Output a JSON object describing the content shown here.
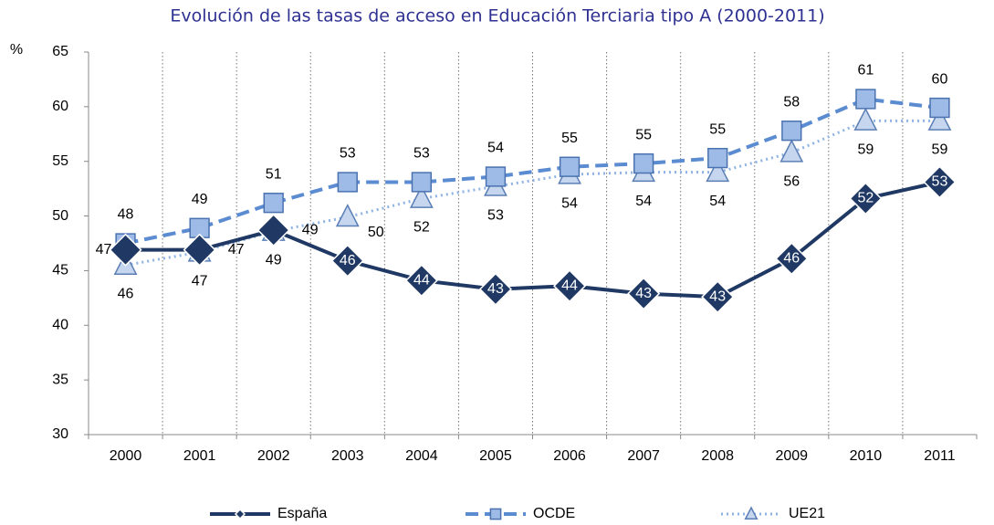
{
  "chart_data": {
    "type": "line",
    "title": "Evolución de las tasas de acceso en Educación Terciaria tipo A (2000-2011)",
    "y_label": "%",
    "categories": [
      "2000",
      "2001",
      "2002",
      "2003",
      "2004",
      "2005",
      "2006",
      "2007",
      "2008",
      "2009",
      "2010",
      "2011"
    ],
    "ylim": [
      30,
      65
    ],
    "yticks": [
      30,
      35,
      40,
      45,
      50,
      55,
      60,
      65
    ],
    "series": [
      {
        "name": "España",
        "color": "#1f3864",
        "marker": "diamond",
        "dash": "solid",
        "values": [
          46.9,
          46.9,
          48.7,
          45.9,
          44.1,
          43.3,
          43.6,
          42.9,
          42.6,
          46.1,
          51.6,
          53.1
        ],
        "value_labels": [
          "47",
          "47",
          "49",
          "46",
          "44",
          "43",
          "44",
          "43",
          "43",
          "46",
          "52",
          "53"
        ]
      },
      {
        "name": "OCDE",
        "color": "#5b8bd0",
        "marker": "square",
        "dash": "dashed",
        "values": [
          47.5,
          48.9,
          51.2,
          53.1,
          53.1,
          53.6,
          54.5,
          54.8,
          55.3,
          57.8,
          60.7,
          59.9
        ],
        "value_labels": [
          "48",
          "49",
          "51",
          "53",
          "53",
          "54",
          "55",
          "55",
          "55",
          "58",
          "61",
          "60"
        ]
      },
      {
        "name": "UE21",
        "color": "#8fb4e3",
        "marker": "triangle",
        "dash": "dotted",
        "values": [
          45.5,
          46.7,
          48.6,
          49.9,
          51.6,
          52.7,
          53.8,
          54.0,
          54.0,
          55.8,
          58.7,
          58.7
        ],
        "value_labels": [
          "46",
          "47",
          "49",
          "50",
          "52",
          "53",
          "54",
          "54",
          "54",
          "56",
          "59",
          "59"
        ]
      }
    ]
  }
}
